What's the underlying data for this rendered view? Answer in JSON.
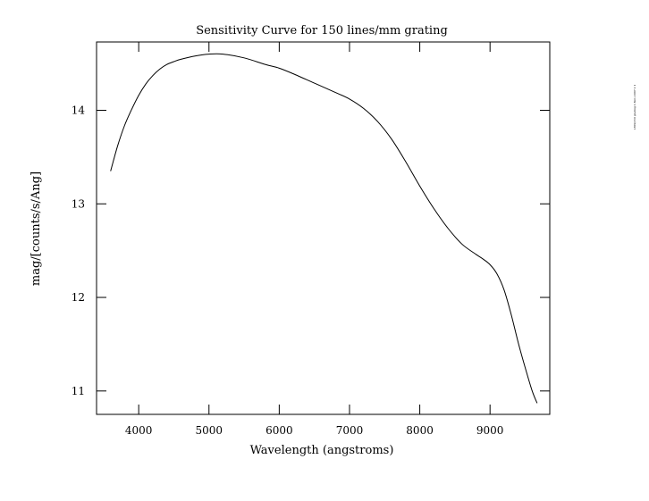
{
  "chart_data": {
    "type": "line",
    "title": "Sensitivity Curve for 150 lines/mm grating",
    "xlabel": "Wavelength (angstroms)",
    "ylabel": "mag/[counts/s/Ang]",
    "xlim": [
      3400,
      9850
    ],
    "ylim": [
      10.75,
      14.73
    ],
    "xticks": [
      4000,
      5000,
      6000,
      7000,
      8000,
      9000
    ],
    "yticks": [
      11,
      12,
      13,
      14
    ],
    "grid": false,
    "series": [
      {
        "x": [
          3600,
          3700,
          3800,
          3900,
          4000,
          4100,
          4200,
          4300,
          4400,
          4500,
          4600,
          4800,
          5000,
          5200,
          5500,
          5800,
          6000,
          6200,
          6500,
          6800,
          7000,
          7200,
          7400,
          7600,
          7800,
          8000,
          8200,
          8400,
          8600,
          8800,
          8900,
          9000,
          9100,
          9200,
          9300,
          9400,
          9500,
          9600,
          9670
        ],
        "y": [
          13.35,
          13.62,
          13.84,
          14.01,
          14.16,
          14.28,
          14.37,
          14.44,
          14.49,
          14.52,
          14.545,
          14.58,
          14.6,
          14.6,
          14.56,
          14.49,
          14.45,
          14.39,
          14.29,
          14.19,
          14.12,
          14.02,
          13.88,
          13.69,
          13.45,
          13.19,
          12.95,
          12.74,
          12.57,
          12.46,
          12.41,
          12.35,
          12.25,
          12.08,
          11.82,
          11.52,
          11.25,
          11.0,
          10.87
        ]
      }
    ]
  },
  "side_note": "LRIS/150 grating 1-Nov-1997 2 1"
}
